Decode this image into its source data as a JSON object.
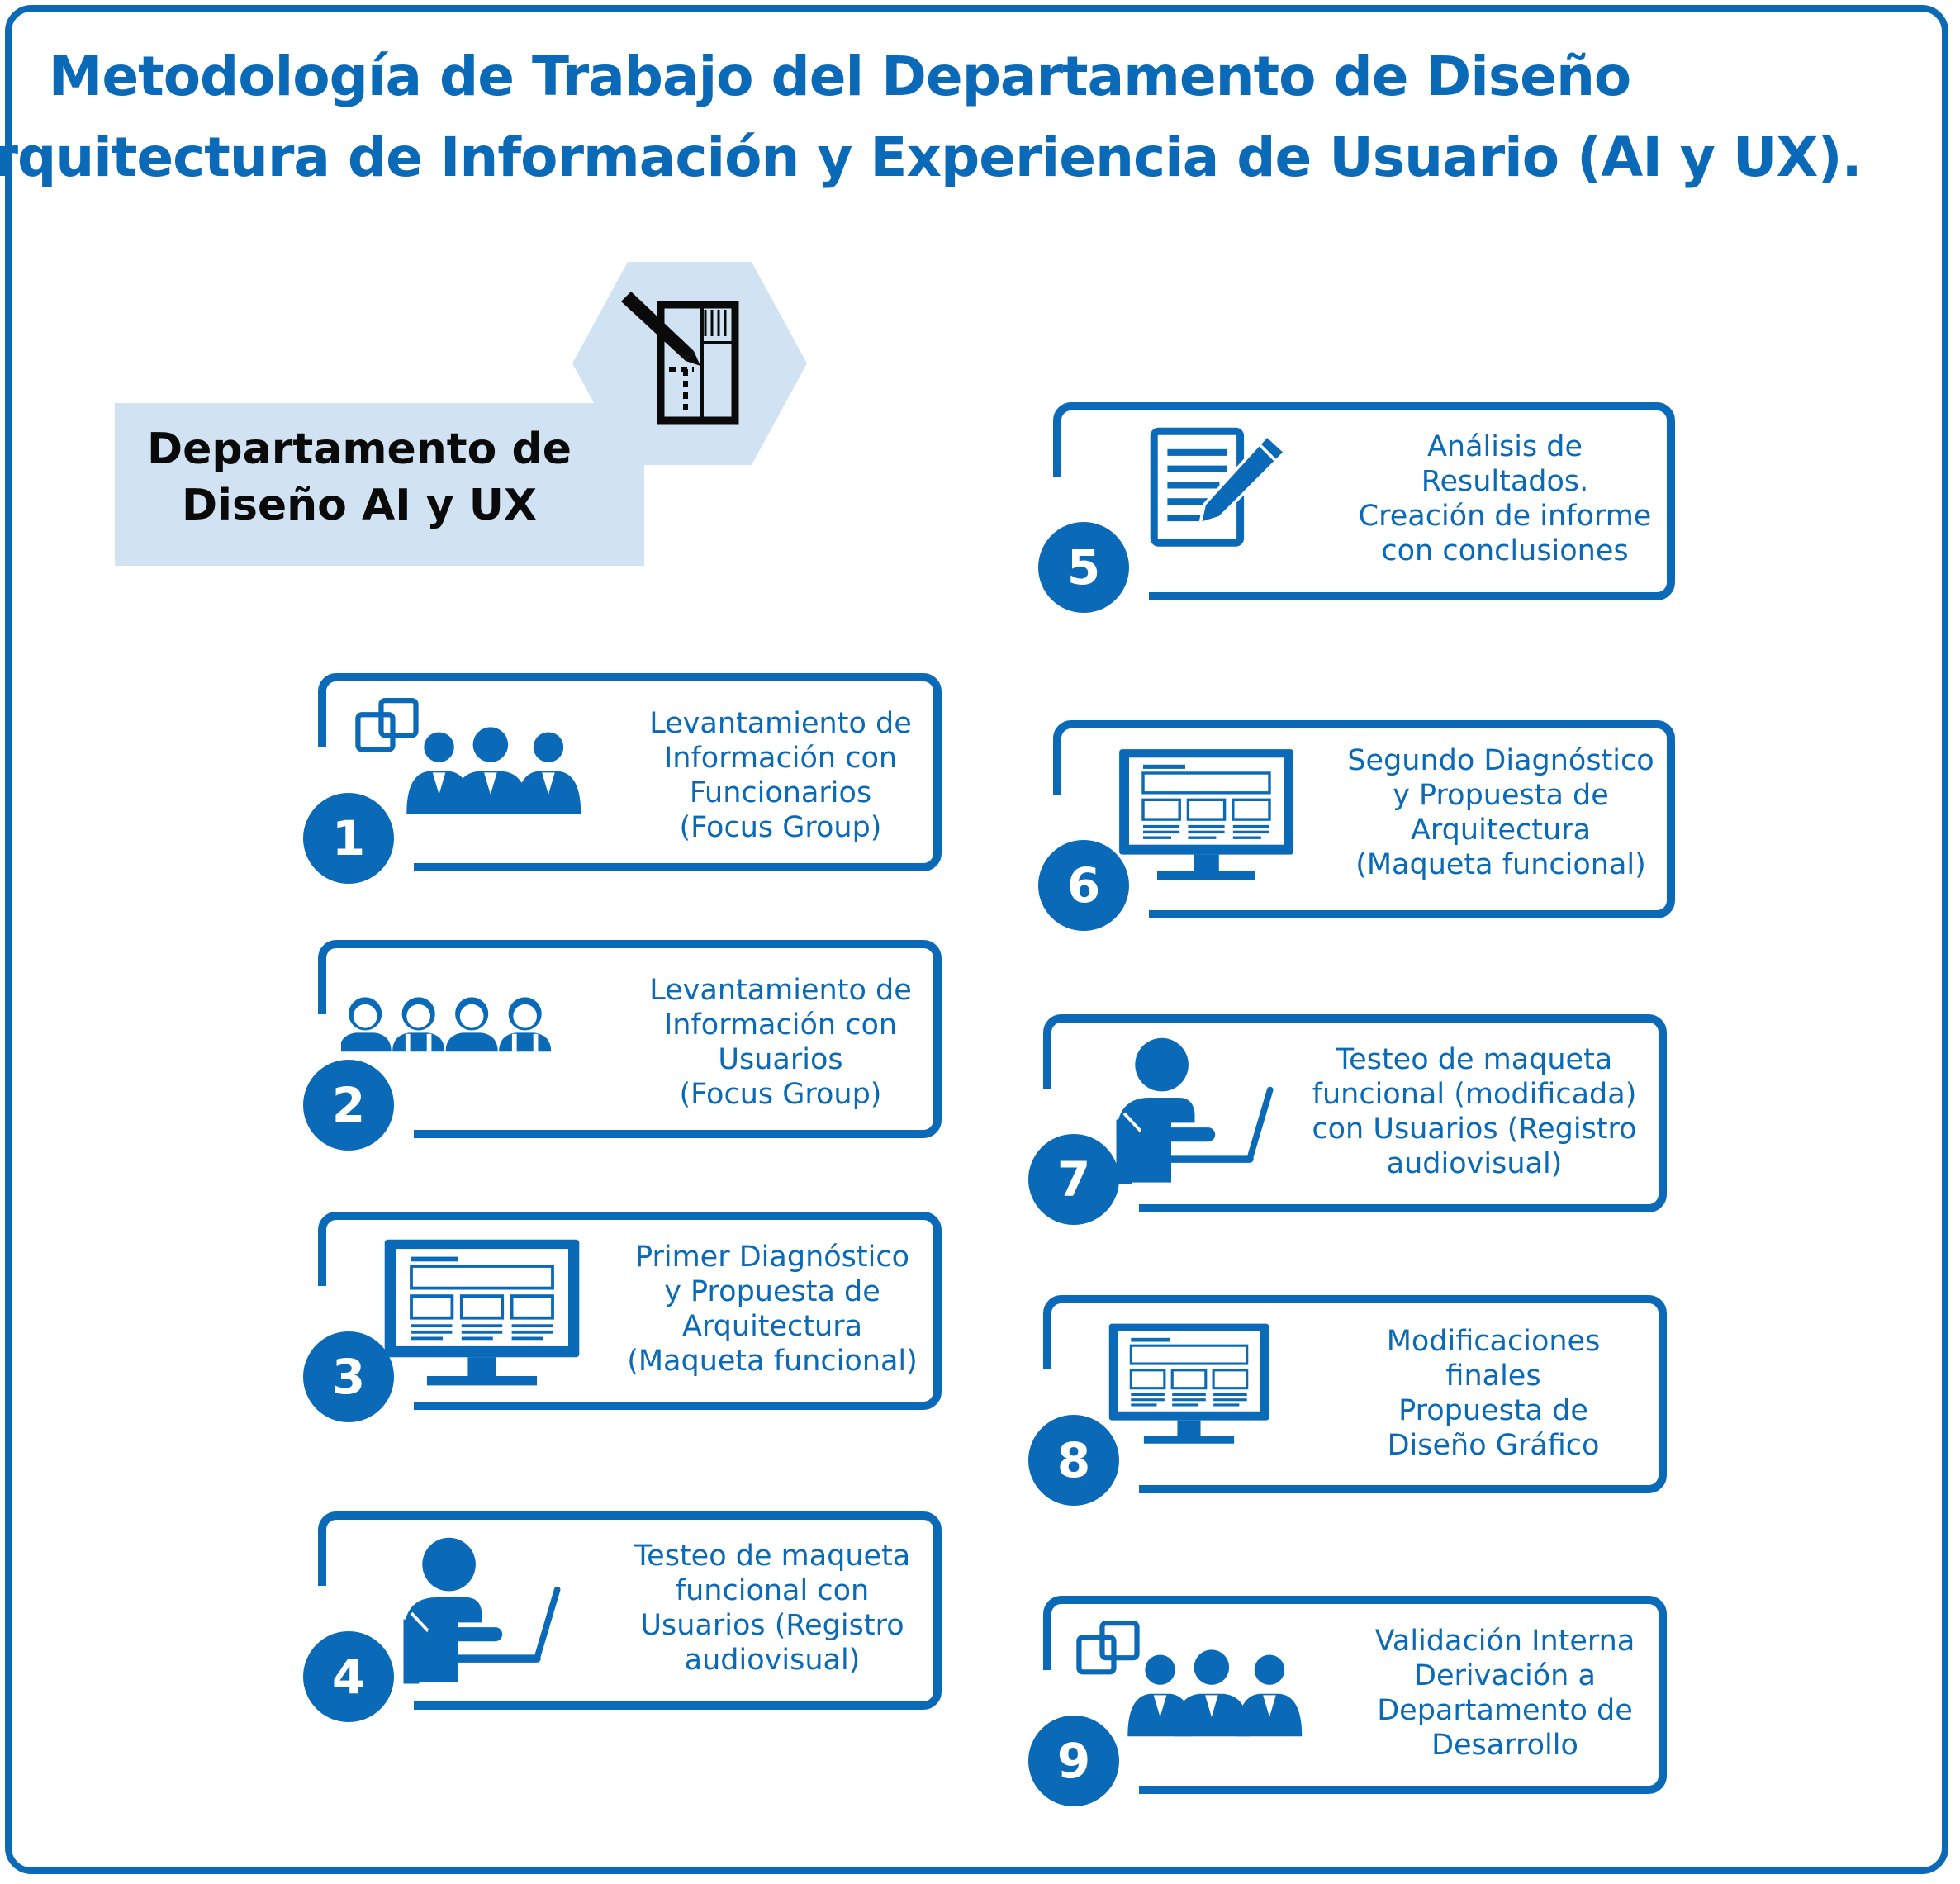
{
  "title": {
    "line1": "Metodología de Trabajo del Departamento de Diseño",
    "line2": "Arquitectura de Información y Experiencia de Usuario (AI y UX)."
  },
  "department": {
    "label_line1": "Departamento de",
    "label_line2": "Diseño AI y UX"
  },
  "steps": [
    {
      "number": "1",
      "lines": [
        "Levantamiento de",
        "Información con",
        "Funcionarios",
        "(Focus Group)"
      ],
      "icon": "team-meeting-icon"
    },
    {
      "number": "2",
      "lines": [
        "Levantamiento de",
        "Información con",
        "Usuarios",
        "(Focus Group)"
      ],
      "icon": "users-group-icon"
    },
    {
      "number": "3",
      "lines": [
        "Primer Diagnóstico",
        "y Propuesta de",
        "Arquitectura",
        "(Maqueta funcional)"
      ],
      "icon": "monitor-wireframe-icon"
    },
    {
      "number": "4",
      "lines": [
        "Testeo de maqueta",
        "funcional con",
        "Usuarios (Registro",
        "audiovisual)"
      ],
      "icon": "user-laptop-icon"
    },
    {
      "number": "5",
      "lines": [
        "Análisis de",
        "Resultados.",
        "Creación de informe",
        "con conclusiones"
      ],
      "icon": "document-pencil-icon"
    },
    {
      "number": "6",
      "lines": [
        "Segundo Diagnóstico",
        "y Propuesta de",
        "Arquitectura",
        "(Maqueta funcional)"
      ],
      "icon": "monitor-wireframe-icon"
    },
    {
      "number": "7",
      "lines": [
        "Testeo de maqueta",
        "funcional (modificada)",
        "con Usuarios (Registro",
        "audiovisual)"
      ],
      "icon": "user-laptop-icon"
    },
    {
      "number": "8",
      "lines": [
        "Modificaciones",
        "finales",
        "Propuesta de",
        "Diseño Gráfico"
      ],
      "icon": "monitor-wireframe-icon"
    },
    {
      "number": "9",
      "lines": [
        "Validación Interna",
        "Derivación a",
        "Departamento de",
        "Desarrollo"
      ],
      "icon": "team-meeting-icon"
    }
  ],
  "colors": {
    "primary": "#0a6ab7",
    "light": "#d1e3f2",
    "text_dark": "#0a0a0a"
  }
}
